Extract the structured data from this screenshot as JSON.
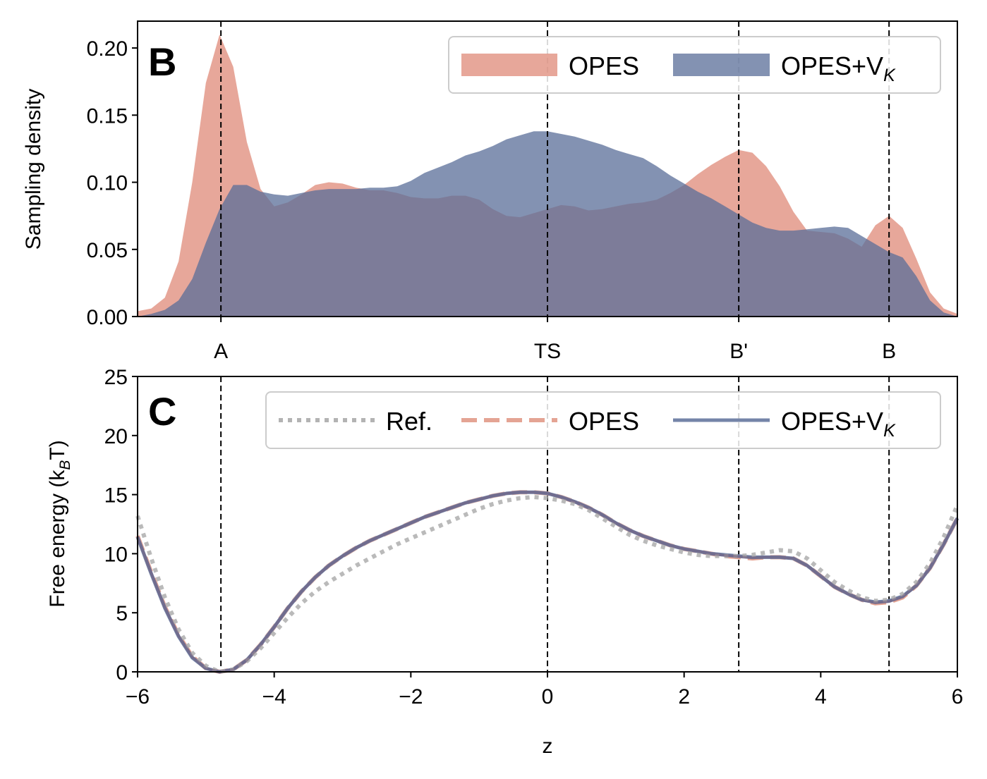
{
  "colors": {
    "opes": "#df8a78",
    "opes_vk": "#5a6e98",
    "ref": "#b3b3b3",
    "opes_line": "#e4a494",
    "opes_vk_line": "#7484a8"
  },
  "chart_data": [
    {
      "type": "area",
      "panel": "B",
      "ylabel": "Sampling density",
      "xlim": [
        -6,
        6
      ],
      "ylim": [
        0,
        0.22
      ],
      "yticks": [
        0.0,
        0.05,
        0.1,
        0.15,
        0.2
      ],
      "ytick_labels": [
        "0.00",
        "0.05",
        "0.10",
        "0.15",
        "0.20"
      ],
      "state_markers": [
        {
          "label": "A",
          "z": -4.78
        },
        {
          "label": "TS",
          "z": 0.0
        },
        {
          "label": "B'",
          "z": 2.8
        },
        {
          "label": "B",
          "z": 5.0
        }
      ],
      "x": [
        -6.0,
        -5.8,
        -5.6,
        -5.4,
        -5.2,
        -5.0,
        -4.8,
        -4.6,
        -4.4,
        -4.2,
        -4.0,
        -3.8,
        -3.6,
        -3.4,
        -3.2,
        -3.0,
        -2.8,
        -2.6,
        -2.4,
        -2.2,
        -2.0,
        -1.8,
        -1.6,
        -1.4,
        -1.2,
        -1.0,
        -0.8,
        -0.6,
        -0.4,
        -0.2,
        0.0,
        0.2,
        0.4,
        0.6,
        0.8,
        1.0,
        1.2,
        1.4,
        1.6,
        1.8,
        2.0,
        2.2,
        2.4,
        2.6,
        2.8,
        3.0,
        3.2,
        3.4,
        3.6,
        3.8,
        4.0,
        4.2,
        4.4,
        4.6,
        4.8,
        5.0,
        5.2,
        5.4,
        5.6,
        5.8,
        6.0
      ],
      "series": [
        {
          "name": "OPES",
          "legend_label": "OPES",
          "values": [
            0.004,
            0.006,
            0.014,
            0.041,
            0.1,
            0.174,
            0.21,
            0.186,
            0.13,
            0.095,
            0.082,
            0.085,
            0.091,
            0.098,
            0.1,
            0.099,
            0.096,
            0.094,
            0.094,
            0.092,
            0.089,
            0.088,
            0.088,
            0.09,
            0.09,
            0.087,
            0.08,
            0.075,
            0.074,
            0.077,
            0.08,
            0.083,
            0.082,
            0.079,
            0.08,
            0.082,
            0.084,
            0.085,
            0.087,
            0.092,
            0.098,
            0.106,
            0.113,
            0.119,
            0.124,
            0.122,
            0.112,
            0.097,
            0.078,
            0.064,
            0.063,
            0.062,
            0.058,
            0.052,
            0.068,
            0.075,
            0.066,
            0.043,
            0.018,
            0.006,
            0.002
          ]
        },
        {
          "name": "OPES+VK",
          "legend_label": "OPES+V",
          "legend_subscript": "K",
          "values": [
            0.0,
            0.002,
            0.005,
            0.012,
            0.028,
            0.055,
            0.08,
            0.098,
            0.098,
            0.093,
            0.091,
            0.09,
            0.092,
            0.094,
            0.095,
            0.095,
            0.095,
            0.096,
            0.096,
            0.097,
            0.101,
            0.107,
            0.111,
            0.115,
            0.12,
            0.123,
            0.127,
            0.132,
            0.135,
            0.138,
            0.138,
            0.136,
            0.134,
            0.131,
            0.128,
            0.124,
            0.121,
            0.118,
            0.112,
            0.105,
            0.099,
            0.093,
            0.088,
            0.082,
            0.076,
            0.07,
            0.066,
            0.064,
            0.064,
            0.065,
            0.066,
            0.067,
            0.066,
            0.06,
            0.054,
            0.048,
            0.044,
            0.03,
            0.012,
            0.003,
            0.0
          ]
        }
      ]
    },
    {
      "type": "line",
      "panel": "C",
      "xlabel": "z",
      "ylabel": "Free energy (k",
      "ylabel_subscript": "B",
      "ylabel_suffix": "T)",
      "xlim": [
        -6,
        6
      ],
      "ylim": [
        0,
        25
      ],
      "xticks": [
        -6,
        -4,
        -2,
        0,
        2,
        4,
        6
      ],
      "xtick_labels": [
        "−6",
        "−4",
        "−2",
        "0",
        "2",
        "4",
        "6"
      ],
      "yticks": [
        0,
        5,
        10,
        15,
        20,
        25
      ],
      "ytick_labels": [
        "0",
        "5",
        "10",
        "15",
        "20",
        "25"
      ],
      "state_markers": [
        -4.78,
        0.0,
        2.8,
        5.0
      ],
      "x": [
        -6.0,
        -5.8,
        -5.6,
        -5.4,
        -5.2,
        -5.0,
        -4.8,
        -4.6,
        -4.4,
        -4.2,
        -4.0,
        -3.8,
        -3.6,
        -3.4,
        -3.2,
        -3.0,
        -2.8,
        -2.6,
        -2.4,
        -2.2,
        -2.0,
        -1.8,
        -1.6,
        -1.4,
        -1.2,
        -1.0,
        -0.8,
        -0.6,
        -0.4,
        -0.2,
        0.0,
        0.2,
        0.4,
        0.6,
        0.8,
        1.0,
        1.2,
        1.4,
        1.6,
        1.8,
        2.0,
        2.2,
        2.4,
        2.6,
        2.8,
        3.0,
        3.2,
        3.4,
        3.6,
        3.8,
        4.0,
        4.2,
        4.4,
        4.6,
        4.8,
        5.0,
        5.2,
        5.4,
        5.6,
        5.8,
        6.0
      ],
      "series": [
        {
          "name": "Ref.",
          "legend_label": "Ref.",
          "style": "dotted",
          "values": [
            13.2,
            9.6,
            6.3,
            3.6,
            1.6,
            0.5,
            0.0,
            0.2,
            0.9,
            2.0,
            3.3,
            4.6,
            5.8,
            6.8,
            7.6,
            8.3,
            9.0,
            9.6,
            10.2,
            10.8,
            11.3,
            11.8,
            12.3,
            12.8,
            13.3,
            13.8,
            14.2,
            14.5,
            14.7,
            14.8,
            14.7,
            14.5,
            14.2,
            13.7,
            13.0,
            12.3,
            11.6,
            11.1,
            10.7,
            10.4,
            10.1,
            9.9,
            9.8,
            9.8,
            9.8,
            9.9,
            10.1,
            10.3,
            10.2,
            9.6,
            8.6,
            7.6,
            6.9,
            6.3,
            6.0,
            6.1,
            6.6,
            7.6,
            9.2,
            11.4,
            14.1
          ]
        },
        {
          "name": "OPES",
          "legend_label": "OPES",
          "style": "dashed",
          "values": [
            11.5,
            8.4,
            5.5,
            3.1,
            1.3,
            0.3,
            0.0,
            0.2,
            1.0,
            2.3,
            3.8,
            5.4,
            6.8,
            8.0,
            9.0,
            9.8,
            10.5,
            11.1,
            11.6,
            12.1,
            12.6,
            13.1,
            13.5,
            13.9,
            14.3,
            14.6,
            14.9,
            15.1,
            15.2,
            15.2,
            15.1,
            14.8,
            14.4,
            13.9,
            13.3,
            12.6,
            12.0,
            11.5,
            11.1,
            10.7,
            10.4,
            10.2,
            10.0,
            9.8,
            9.7,
            9.6,
            9.7,
            9.7,
            9.6,
            9.0,
            8.1,
            7.2,
            6.6,
            6.1,
            5.8,
            5.9,
            6.3,
            7.3,
            8.8,
            10.8,
            13.0
          ]
        },
        {
          "name": "OPES+VK",
          "legend_label": "OPES+V",
          "legend_subscript": "K",
          "style": "solid",
          "values": [
            11.4,
            8.3,
            5.4,
            3.0,
            1.2,
            0.3,
            0.0,
            0.2,
            1.0,
            2.3,
            3.8,
            5.4,
            6.8,
            8.0,
            9.0,
            9.8,
            10.5,
            11.1,
            11.6,
            12.1,
            12.6,
            13.1,
            13.5,
            13.9,
            14.3,
            14.6,
            14.9,
            15.1,
            15.2,
            15.2,
            15.1,
            14.8,
            14.4,
            13.9,
            13.3,
            12.6,
            12.0,
            11.5,
            11.1,
            10.7,
            10.4,
            10.2,
            10.0,
            9.9,
            9.8,
            9.7,
            9.7,
            9.7,
            9.6,
            9.0,
            8.1,
            7.2,
            6.6,
            6.1,
            5.9,
            6.0,
            6.4,
            7.3,
            8.8,
            10.8,
            13.0
          ]
        }
      ]
    }
  ]
}
